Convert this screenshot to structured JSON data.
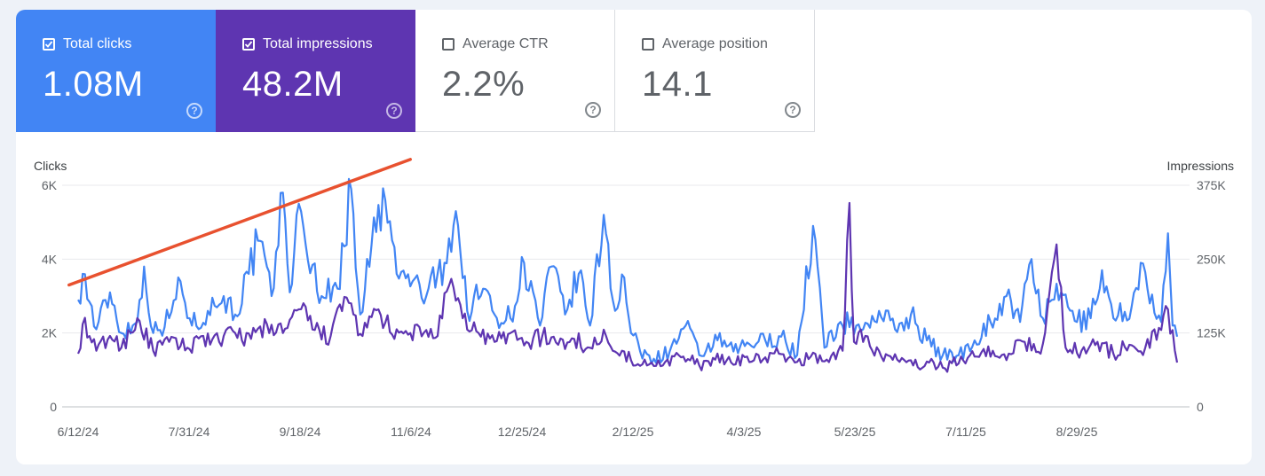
{
  "metrics": [
    {
      "label": "Total clicks",
      "value": "1.08M",
      "checked": true,
      "color": "#4285f4"
    },
    {
      "label": "Total impressions",
      "value": "48.2M",
      "checked": true,
      "color": "#5e35b1"
    },
    {
      "label": "Average CTR",
      "value": "2.2%",
      "checked": false
    },
    {
      "label": "Average position",
      "value": "14.1",
      "checked": false
    }
  ],
  "help_glyph": "?",
  "chart_data": {
    "type": "line",
    "x_ticks": [
      "6/12/24",
      "7/31/24",
      "9/18/24",
      "11/6/24",
      "12/25/24",
      "2/12/25",
      "4/3/25",
      "5/23/25",
      "7/11/25",
      "8/29/25"
    ],
    "x_range": [
      "2024-06-12",
      "2025-10-08"
    ],
    "left_axis": {
      "label": "Clicks",
      "ticks": [
        "0",
        "2K",
        "4K",
        "6K"
      ],
      "range": [
        0,
        6000
      ]
    },
    "right_axis": {
      "label": "Impressions",
      "ticks": [
        "0",
        "125K",
        "250K",
        "375K"
      ],
      "range": [
        0,
        375000
      ]
    },
    "grid": true,
    "legend": "none",
    "series": [
      {
        "axis": "left",
        "color": "#4285f4",
        "points": [
          [
            "2024-06-12",
            2900
          ],
          [
            "2024-06-14",
            3600
          ],
          [
            "2024-06-20",
            2100
          ],
          [
            "2024-06-26",
            3100
          ],
          [
            "2024-07-01",
            2000
          ],
          [
            "2024-07-08",
            2300
          ],
          [
            "2024-07-11",
            3800
          ],
          [
            "2024-07-15",
            2000
          ],
          [
            "2024-07-22",
            2400
          ],
          [
            "2024-07-27",
            3400
          ],
          [
            "2024-08-01",
            2200
          ],
          [
            "2024-08-08",
            2600
          ],
          [
            "2024-08-15",
            3000
          ],
          [
            "2024-08-20",
            2500
          ],
          [
            "2024-08-26",
            3600
          ],
          [
            "2024-08-30",
            4500
          ],
          [
            "2024-09-05",
            3000
          ],
          [
            "2024-09-10",
            5800
          ],
          [
            "2024-09-13",
            3100
          ],
          [
            "2024-09-16",
            5200
          ],
          [
            "2024-09-20",
            4400
          ],
          [
            "2024-09-27",
            3000
          ],
          [
            "2024-10-04",
            3200
          ],
          [
            "2024-10-10",
            5900
          ],
          [
            "2024-10-14",
            2500
          ],
          [
            "2024-10-19",
            4400
          ],
          [
            "2024-10-25",
            5600
          ],
          [
            "2024-10-30",
            3600
          ],
          [
            "2024-11-06",
            3400
          ],
          [
            "2024-11-12",
            3000
          ],
          [
            "2024-11-20",
            3900
          ],
          [
            "2024-11-25",
            5300
          ],
          [
            "2024-11-30",
            2600
          ],
          [
            "2024-12-07",
            3200
          ],
          [
            "2024-12-12",
            2500
          ],
          [
            "2024-12-19",
            2400
          ],
          [
            "2024-12-25",
            3900
          ],
          [
            "2025-01-01",
            2200
          ],
          [
            "2025-01-06",
            3800
          ],
          [
            "2025-01-12",
            2500
          ],
          [
            "2025-01-18",
            3600
          ],
          [
            "2025-01-23",
            2200
          ],
          [
            "2025-01-29",
            5200
          ],
          [
            "2025-02-03",
            2600
          ],
          [
            "2025-02-07",
            3500
          ],
          [
            "2025-02-10",
            2000
          ],
          [
            "2025-02-14",
            1500
          ],
          [
            "2025-02-20",
            1300
          ],
          [
            "2025-02-27",
            1500
          ],
          [
            "2025-03-06",
            2200
          ],
          [
            "2025-03-12",
            1400
          ],
          [
            "2025-03-20",
            1800
          ],
          [
            "2025-03-27",
            1500
          ],
          [
            "2025-04-03",
            1700
          ],
          [
            "2025-04-10",
            1800
          ],
          [
            "2025-04-17",
            1900
          ],
          [
            "2025-04-24",
            1400
          ],
          [
            "2025-05-01",
            4900
          ],
          [
            "2025-05-06",
            1600
          ],
          [
            "2025-05-13",
            2300
          ],
          [
            "2025-05-20",
            2200
          ],
          [
            "2025-05-23",
            2100
          ],
          [
            "2025-05-30",
            2600
          ],
          [
            "2025-06-06",
            2100
          ],
          [
            "2025-06-13",
            2500
          ],
          [
            "2025-06-20",
            1800
          ],
          [
            "2025-06-27",
            1400
          ],
          [
            "2025-07-04",
            1400
          ],
          [
            "2025-07-11",
            1800
          ],
          [
            "2025-07-18",
            2300
          ],
          [
            "2025-07-25",
            3000
          ],
          [
            "2025-07-31",
            2300
          ],
          [
            "2025-08-05",
            4000
          ],
          [
            "2025-08-10",
            2400
          ],
          [
            "2025-08-18",
            3100
          ],
          [
            "2025-08-25",
            2300
          ],
          [
            "2025-08-31",
            2400
          ],
          [
            "2025-09-05",
            3700
          ],
          [
            "2025-09-10",
            2400
          ],
          [
            "2025-09-18",
            2700
          ],
          [
            "2025-09-22",
            3900
          ],
          [
            "2025-09-26",
            2800
          ],
          [
            "2025-10-01",
            2300
          ],
          [
            "2025-10-04",
            4700
          ],
          [
            "2025-10-06",
            2200
          ],
          [
            "2025-10-08",
            1900
          ]
        ]
      },
      {
        "axis": "right",
        "color": "#5e35b1",
        "points": [
          [
            "2024-06-12",
            90000
          ],
          [
            "2024-06-14",
            140000
          ],
          [
            "2024-06-20",
            95000
          ],
          [
            "2024-06-26",
            120000
          ],
          [
            "2024-07-01",
            100000
          ],
          [
            "2024-07-08",
            150000
          ],
          [
            "2024-07-15",
            95000
          ],
          [
            "2024-07-22",
            110000
          ],
          [
            "2024-07-30",
            100000
          ],
          [
            "2024-08-06",
            120000
          ],
          [
            "2024-08-13",
            110000
          ],
          [
            "2024-08-20",
            125000
          ],
          [
            "2024-08-27",
            115000
          ],
          [
            "2024-09-03",
            140000
          ],
          [
            "2024-09-10",
            125000
          ],
          [
            "2024-09-17",
            165000
          ],
          [
            "2024-09-24",
            130000
          ],
          [
            "2024-10-01",
            120000
          ],
          [
            "2024-10-08",
            185000
          ],
          [
            "2024-10-15",
            120000
          ],
          [
            "2024-10-22",
            165000
          ],
          [
            "2024-10-29",
            115000
          ],
          [
            "2024-11-05",
            125000
          ],
          [
            "2024-11-12",
            130000
          ],
          [
            "2024-11-17",
            120000
          ],
          [
            "2024-11-22",
            205000
          ],
          [
            "2024-11-28",
            150000
          ],
          [
            "2024-12-05",
            125000
          ],
          [
            "2024-12-12",
            110000
          ],
          [
            "2024-12-19",
            125000
          ],
          [
            "2024-12-26",
            110000
          ],
          [
            "2025-01-02",
            120000
          ],
          [
            "2025-01-09",
            105000
          ],
          [
            "2025-01-16",
            115000
          ],
          [
            "2025-01-23",
            100000
          ],
          [
            "2025-01-30",
            120000
          ],
          [
            "2025-02-06",
            95000
          ],
          [
            "2025-02-12",
            70000
          ],
          [
            "2025-02-19",
            75000
          ],
          [
            "2025-02-26",
            80000
          ],
          [
            "2025-03-05",
            85000
          ],
          [
            "2025-03-12",
            70000
          ],
          [
            "2025-03-19",
            80000
          ],
          [
            "2025-03-26",
            75000
          ],
          [
            "2025-04-02",
            85000
          ],
          [
            "2025-04-09",
            80000
          ],
          [
            "2025-04-16",
            90000
          ],
          [
            "2025-04-23",
            75000
          ],
          [
            "2025-04-30",
            85000
          ],
          [
            "2025-05-07",
            80000
          ],
          [
            "2025-05-14",
            95000
          ],
          [
            "2025-05-17",
            345000
          ],
          [
            "2025-05-19",
            110000
          ],
          [
            "2025-05-24",
            120000
          ],
          [
            "2025-05-31",
            85000
          ],
          [
            "2025-06-07",
            80000
          ],
          [
            "2025-06-14",
            70000
          ],
          [
            "2025-06-21",
            75000
          ],
          [
            "2025-06-28",
            65000
          ],
          [
            "2025-07-05",
            85000
          ],
          [
            "2025-07-12",
            85000
          ],
          [
            "2025-07-19",
            95000
          ],
          [
            "2025-07-26",
            90000
          ],
          [
            "2025-08-02",
            110000
          ],
          [
            "2025-08-09",
            90000
          ],
          [
            "2025-08-16",
            275000
          ],
          [
            "2025-08-20",
            100000
          ],
          [
            "2025-08-27",
            95000
          ],
          [
            "2025-09-03",
            110000
          ],
          [
            "2025-09-10",
            90000
          ],
          [
            "2025-09-17",
            105000
          ],
          [
            "2025-09-24",
            100000
          ],
          [
            "2025-10-01",
            130000
          ],
          [
            "2025-10-04",
            165000
          ],
          [
            "2025-10-08",
            75000
          ]
        ]
      }
    ],
    "annotation": {
      "type": "line",
      "color": "#e8512f",
      "from": [
        "2024-06-08",
        3300
      ],
      "to": [
        "2024-11-05",
        6700
      ]
    }
  }
}
